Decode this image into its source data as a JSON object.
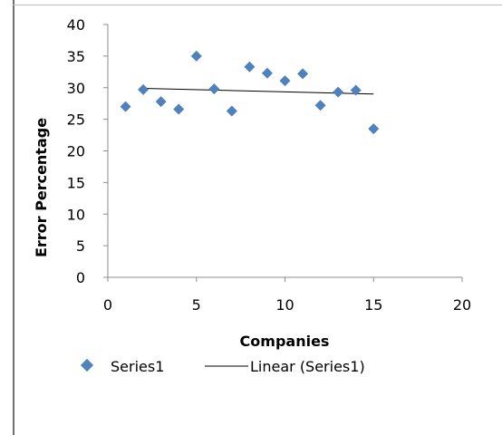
{
  "chart_data": {
    "type": "scatter",
    "xlabel": "Companies",
    "ylabel": "Error Percentage",
    "xlim": [
      0,
      20
    ],
    "ylim": [
      0,
      40
    ],
    "xticks": [
      0,
      5,
      10,
      15,
      20
    ],
    "yticks": [
      0,
      5,
      10,
      15,
      20,
      25,
      30,
      35,
      40
    ],
    "grid": false,
    "legend_position": "bottom-left",
    "marker_color": "#4F81BD",
    "trend_color": "#000000",
    "series": [
      {
        "name": "Series1",
        "x": [
          1,
          2,
          3,
          4,
          5,
          6,
          7,
          8,
          9,
          10,
          11,
          12,
          13,
          14,
          15
        ],
        "values": [
          27.0,
          29.7,
          27.8,
          26.6,
          35.0,
          29.8,
          26.3,
          33.3,
          32.3,
          31.1,
          32.2,
          27.2,
          29.3,
          29.6,
          23.5
        ]
      }
    ],
    "trendline": {
      "name": "Linear (Series1)",
      "type": "linear",
      "x_start": 2,
      "x_end": 15,
      "y_start": 29.9,
      "y_end": 29.0
    }
  }
}
